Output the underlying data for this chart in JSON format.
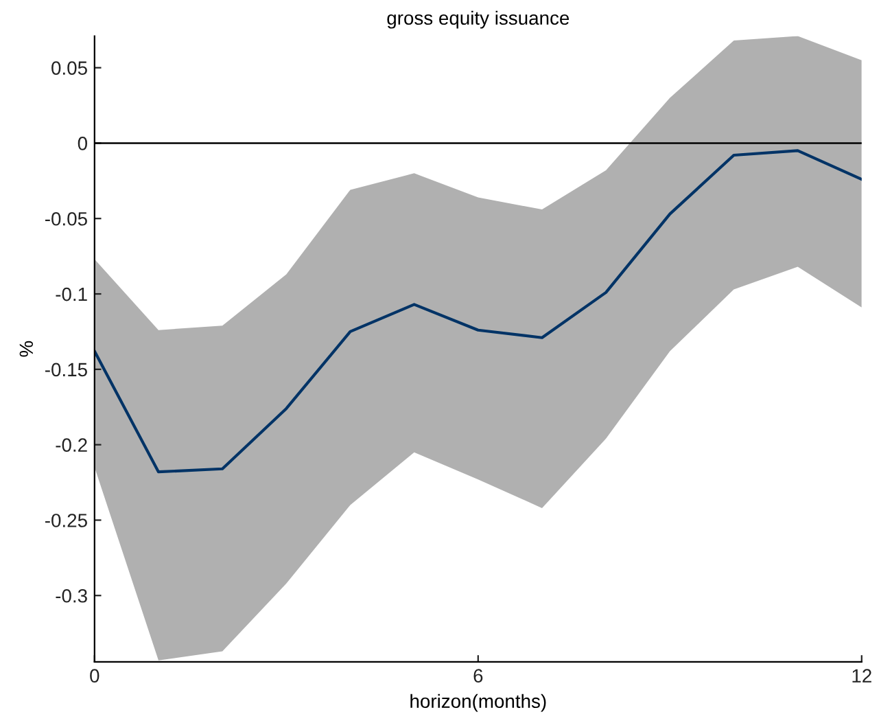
{
  "chart_data": {
    "type": "line",
    "title": "gross equity issuance",
    "xlabel": "horizon(months)",
    "ylabel": "%",
    "x": [
      0,
      1,
      2,
      3,
      4,
      5,
      6,
      7,
      8,
      9,
      10,
      11,
      12
    ],
    "series": [
      {
        "color": "#003366",
        "values": [
          -0.138,
          -0.218,
          -0.216,
          -0.176,
          -0.125,
          -0.107,
          -0.124,
          -0.129,
          -0.099,
          -0.047,
          -0.008,
          -0.005,
          -0.024
        ],
        "lower": [
          -0.215,
          -0.343,
          -0.337,
          -0.292,
          -0.24,
          -0.205,
          -0.223,
          -0.242,
          -0.196,
          -0.138,
          -0.097,
          -0.082,
          -0.109
        ],
        "upper": [
          -0.077,
          -0.124,
          -0.121,
          -0.087,
          -0.031,
          -0.02,
          -0.036,
          -0.044,
          -0.018,
          0.03,
          0.068,
          0.071,
          0.055
        ]
      }
    ],
    "xlim": [
      0,
      12
    ],
    "xticks": [
      0,
      6,
      12
    ],
    "ylim": [
      -0.344,
      0.071
    ],
    "yticks": [
      -0.3,
      -0.25,
      -0.2,
      -0.15,
      -0.1,
      -0.05,
      0,
      0.05
    ],
    "ref_lines": [
      {
        "axis": "y",
        "value": 0,
        "color": "#000000"
      }
    ],
    "grid": false,
    "legend": false
  }
}
